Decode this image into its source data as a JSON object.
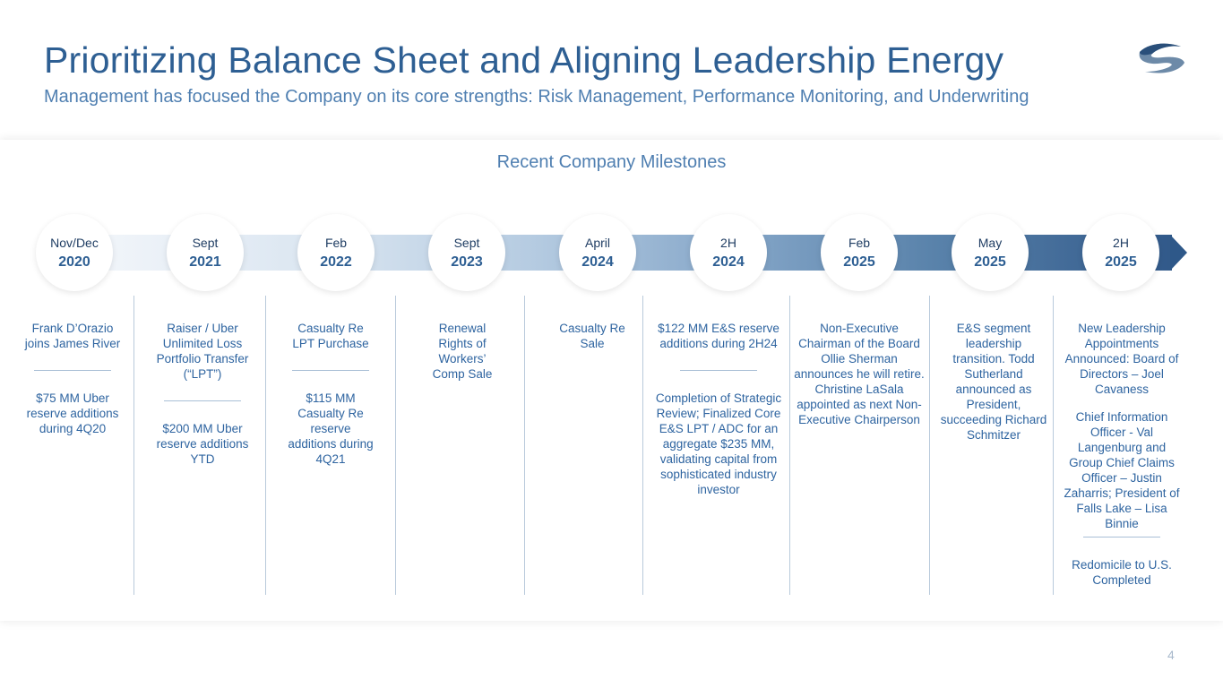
{
  "title": "Prioritizing Balance Sheet and Aligning Leadership Energy",
  "subtitle": "Management has focused the Company on its core strengths: Risk Management, Performance Monitoring, and Underwriting",
  "section_title": "Recent Company Milestones",
  "page_number": "4",
  "colors": {
    "title": "#2e5f93",
    "band_start": "#f4f7fb",
    "band_end": "#31598a",
    "body_text": "#2e64a0"
  },
  "timeline": [
    {
      "month": "Nov/Dec",
      "year": "2020",
      "texts": [
        "Frank D’Orazio joins James River",
        "$75 MM Uber reserve additions during 4Q20"
      ]
    },
    {
      "month": "Sept",
      "year": "2021",
      "texts": [
        "Raiser / Uber Unlimited Loss Portfolio Transfer (“LPT”)",
        "$200 MM Uber reserve additions YTD"
      ]
    },
    {
      "month": "Feb",
      "year": "2022",
      "texts": [
        "Casualty Re LPT Purchase",
        "$115 MM Casualty Re reserve additions during 4Q21"
      ]
    },
    {
      "month": "Sept",
      "year": "2023",
      "texts": [
        "Renewal Rights of Workers’ Comp Sale"
      ]
    },
    {
      "month": "April",
      "year": "2024",
      "texts": [
        "Casualty Re Sale"
      ]
    },
    {
      "month": "2H",
      "year": "2024",
      "texts": [
        "$122 MM E&S reserve additions during 2H24",
        "Completion of Strategic Review; Finalized Core E&S LPT / ADC for an aggregate $235 MM, validating capital from sophisticated industry investor"
      ]
    },
    {
      "month": "Feb",
      "year": "2025",
      "texts": [
        "Non-Executive Chairman of the Board Ollie Sherman announces he will retire. Christine LaSala appointed as next Non-Executive Chairperson"
      ]
    },
    {
      "month": "May",
      "year": "2025",
      "texts": [
        "E&S segment leadership transition. Todd Sutherland announced as President, succeeding Richard Schmitzer"
      ]
    },
    {
      "month": "2H",
      "year": "2025",
      "texts": [
        "New Leadership Appointments Announced: Board of Directors – Joel Cavaness",
        "Chief Information Officer - Val Langenburg and Group Chief Claims Officer – Justin Zaharris; President of Falls Lake – Lisa Binnie",
        "Redomicile to U.S. Completed"
      ]
    }
  ]
}
